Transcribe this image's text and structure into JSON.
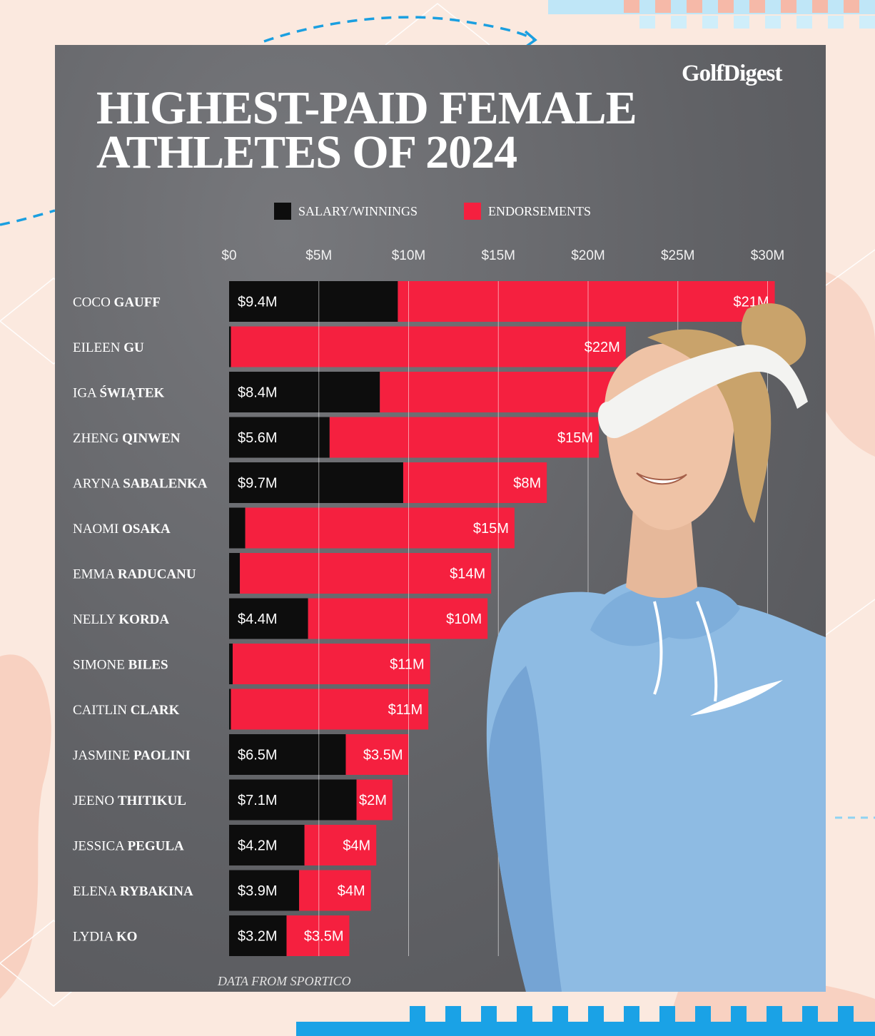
{
  "brand": "GolfDigest",
  "title_line1": "HIGHEST-PAID FEMALE",
  "title_line2": "ATHLETES OF 2024",
  "source": "DATA FROM SPORTICO",
  "colors": {
    "salary": "#0d0d0d",
    "endorsements": "#f5203f",
    "background": "#616266"
  },
  "chart_data": {
    "type": "bar",
    "orientation": "horizontal",
    "stacked": true,
    "xlim": [
      0,
      31
    ],
    "x_ticks": [
      0,
      5,
      10,
      15,
      20,
      25,
      30
    ],
    "x_tick_labels": [
      "$0",
      "$5M",
      "$10M",
      "$15M",
      "$20M",
      "$25M",
      "$30M"
    ],
    "legend": [
      "SALARY/WINNINGS",
      "ENDORSEMENTS"
    ],
    "legend_position": "top",
    "grid": true,
    "categories": [
      {
        "first": "COCO",
        "last": "GAUFF"
      },
      {
        "first": "EILEEN",
        "last": "GU"
      },
      {
        "first": "IGA",
        "last": "ŚWIĄTEK"
      },
      {
        "first": "ZHENG",
        "last": "QINWEN"
      },
      {
        "first": "ARYNA",
        "last": "SABALENKA"
      },
      {
        "first": "NAOMI",
        "last": "OSAKA"
      },
      {
        "first": "EMMA",
        "last": "RADUCANU"
      },
      {
        "first": "NELLY",
        "last": "KORDA"
      },
      {
        "first": "SIMONE",
        "last": "BILES"
      },
      {
        "first": "CAITLIN",
        "last": "CLARK"
      },
      {
        "first": "JASMINE",
        "last": "PAOLINI"
      },
      {
        "first": "JEENO",
        "last": "THITIKUL"
      },
      {
        "first": "JESSICA",
        "last": "PEGULA"
      },
      {
        "first": "ELENA",
        "last": "RYBAKINA"
      },
      {
        "first": "LYDIA",
        "last": "KO"
      }
    ],
    "series": [
      {
        "name": "SALARY/WINNINGS",
        "values": [
          9.4,
          0.1,
          8.4,
          5.6,
          9.7,
          0.9,
          0.6,
          4.4,
          0.2,
          0.1,
          6.5,
          7.1,
          4.2,
          3.9,
          3.2
        ],
        "labels": [
          "$9.4M",
          "",
          "$8.4M",
          "$5.6M",
          "$9.7M",
          "",
          "",
          "$4.4M",
          "",
          "",
          "$6.5M",
          "$7.1M",
          "$4.2M",
          "$3.9M",
          "$3.2M"
        ]
      },
      {
        "name": "ENDORSEMENTS",
        "values": [
          21,
          22,
          17,
          15,
          8,
          15,
          14,
          10,
          11,
          11,
          3.5,
          2,
          4,
          4,
          3.5
        ],
        "labels": [
          "$21M",
          "$22M",
          "",
          "$15M",
          "$8M",
          "$15M",
          "$14M",
          "$10M",
          "$11M",
          "$11M",
          "$3.5M",
          "$2M",
          "$4M",
          "$4M",
          "$3.5M"
        ]
      }
    ]
  }
}
